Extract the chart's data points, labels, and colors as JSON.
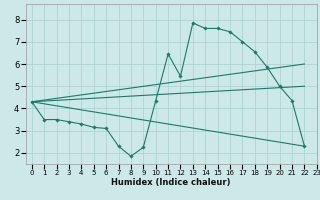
{
  "xlabel": "Humidex (Indice chaleur)",
  "background_color": "#cce8e8",
  "grid_color": "#aacfcf",
  "line_color": "#1a7a6a",
  "xlim": [
    -0.5,
    23
  ],
  "ylim": [
    1.5,
    8.7
  ],
  "xticks": [
    0,
    1,
    2,
    3,
    4,
    5,
    6,
    7,
    8,
    9,
    10,
    11,
    12,
    13,
    14,
    15,
    16,
    17,
    18,
    19,
    20,
    21,
    22,
    23
  ],
  "yticks": [
    2,
    3,
    4,
    5,
    6,
    7,
    8
  ],
  "main_series": {
    "x": [
      0,
      1,
      2,
      3,
      4,
      5,
      6,
      7,
      8,
      9,
      10,
      11,
      12,
      13,
      14,
      15,
      16,
      17,
      18,
      19,
      20,
      21,
      22
    ],
    "y": [
      4.3,
      3.5,
      3.5,
      3.4,
      3.3,
      3.15,
      3.1,
      2.3,
      1.85,
      2.25,
      4.35,
      6.45,
      5.45,
      7.85,
      7.6,
      7.6,
      7.45,
      7.0,
      6.55,
      5.85,
      5.0,
      4.35,
      2.3
    ]
  },
  "straight_lines": [
    {
      "x": [
        0,
        22
      ],
      "y": [
        4.3,
        6.0
      ]
    },
    {
      "x": [
        0,
        22
      ],
      "y": [
        4.3,
        5.0
      ]
    },
    {
      "x": [
        0,
        22
      ],
      "y": [
        4.3,
        2.3
      ]
    }
  ]
}
